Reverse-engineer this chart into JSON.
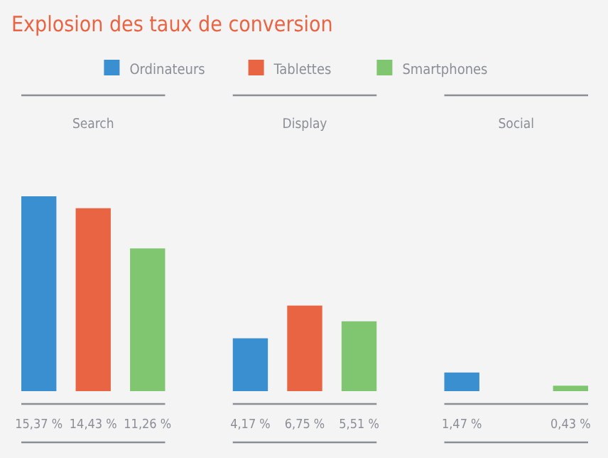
{
  "chart_data": {
    "type": "bar",
    "title": "Explosion des taux de conversion",
    "categories": [
      "Search",
      "Display",
      "Social"
    ],
    "legend": "top",
    "series": [
      {
        "name": "Ordinateurs",
        "color": "#3a8fd0",
        "values": [
          15.37,
          4.17,
          1.47
        ],
        "value_labels": [
          "15,37 %",
          "4,17 %",
          "1,47 %"
        ]
      },
      {
        "name": "Tablettes",
        "color": "#e96443",
        "values": [
          14.43,
          6.75,
          null
        ],
        "value_labels": [
          "14,43 %",
          "6,75 %",
          null
        ]
      },
      {
        "name": "Smartphones",
        "color": "#80c671",
        "values": [
          11.26,
          5.51,
          0.43
        ],
        "value_labels": [
          "11,26 %",
          "5,51 %",
          "0,43 %"
        ]
      }
    ]
  }
}
